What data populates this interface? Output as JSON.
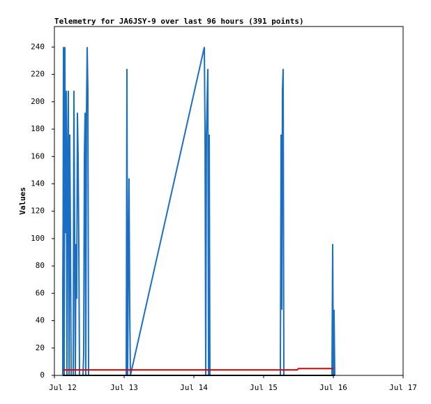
{
  "chart_data": {
    "type": "line",
    "title": "Telemetry for JA6JSY-9 over last 96 hours (391 points)",
    "y_label": "Values",
    "xlim": [
      0,
      5
    ],
    "xticks": [
      {
        "value": 0,
        "label": "Jul 12"
      },
      {
        "value": 1,
        "label": "Jul 13"
      },
      {
        "value": 2,
        "label": "Jul 14"
      },
      {
        "value": 3,
        "label": "Jul 15"
      },
      {
        "value": 4,
        "label": "Jul 16"
      },
      {
        "value": 5,
        "label": "Jul 17"
      }
    ],
    "ylim": [
      0,
      255
    ],
    "yticks": [
      0,
      20,
      40,
      60,
      80,
      100,
      120,
      140,
      160,
      180,
      200,
      220,
      240
    ],
    "series": [
      {
        "color": "#1a6fc4",
        "x": [
          0.12,
          0.12,
          0.125,
          0.13,
          0.14,
          0.15,
          0.16,
          0.17,
          0.18,
          0.19,
          0.2,
          0.21,
          0.22,
          0.23,
          0.24,
          0.27,
          0.28,
          0.29,
          0.3,
          0.31,
          0.32,
          0.33,
          0.34,
          0.35,
          0.36,
          0.41,
          0.42,
          0.43,
          0.44,
          0.45,
          0.46,
          0.47,
          0.48,
          0.49,
          1.03,
          1.04,
          1.05,
          1.06,
          1.07,
          1.08,
          1.09,
          2.15,
          2.16,
          2.17,
          2.18,
          2.2,
          2.21,
          2.22,
          2.23,
          3.24,
          3.25,
          3.26,
          3.27,
          3.28,
          3.29,
          3.98,
          3.99,
          4.0,
          4.01,
          4.02
        ],
        "values": [
          0,
          64,
          112,
          240,
          0,
          240,
          104,
          208,
          0,
          160,
          208,
          0,
          176,
          104,
          0,
          0,
          208,
          104,
          0,
          96,
          56,
          192,
          160,
          96,
          0,
          0,
          16,
          160,
          192,
          0,
          192,
          240,
          208,
          0,
          0,
          224,
          0,
          80,
          144,
          48,
          0,
          240,
          176,
          0,
          176,
          224,
          0,
          176,
          0,
          0,
          176,
          48,
          208,
          224,
          0,
          0,
          96,
          0,
          48,
          0
        ]
      },
      {
        "color": "#e00000",
        "x": [
          0.12,
          3.48,
          3.5,
          3.98,
          4.0
        ],
        "values": [
          4,
          4,
          5,
          5,
          5.5
        ]
      },
      {
        "color": "#000000",
        "x": [
          0.12,
          4.02
        ],
        "values": [
          0,
          0
        ]
      }
    ]
  }
}
